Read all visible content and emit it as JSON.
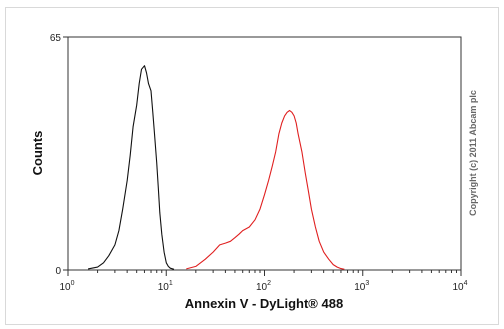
{
  "chart_data": {
    "type": "line",
    "title": "",
    "xlabel": "Annexin V - DyLight® 488",
    "ylabel": "Counts",
    "x_scale": "log",
    "xlim": [
      1,
      10000
    ],
    "ylim": [
      0,
      65
    ],
    "x_tick_labels": [
      {
        "base": "10",
        "exp": "0"
      },
      {
        "base": "10",
        "exp": "1"
      },
      {
        "base": "10",
        "exp": "2"
      },
      {
        "base": "10",
        "exp": "3"
      },
      {
        "base": "10",
        "exp": "4"
      }
    ],
    "y_tick_labels": [
      "0",
      "65"
    ],
    "y_ticks": [
      0,
      65
    ],
    "grid": false,
    "legend": "none",
    "annotation": "Copyright (c) 2011 Abcam plc",
    "series": [
      {
        "color": "#111111",
        "x": [
          1.6,
          2.0,
          2.3,
          2.6,
          3.0,
          3.3,
          3.6,
          4.0,
          4.3,
          4.6,
          5.0,
          5.3,
          5.6,
          6.0,
          6.3,
          6.6,
          7.0,
          7.3,
          7.6,
          8.0,
          8.3,
          8.6,
          9.0,
          9.5,
          10.0,
          10.5,
          11.0,
          12.0
        ],
        "y": [
          0.3,
          0.8,
          2,
          4,
          7,
          11,
          17,
          25,
          32,
          40,
          46,
          52,
          56,
          57,
          55,
          52,
          50,
          44,
          38,
          30,
          23,
          16,
          10,
          5,
          2,
          1,
          0.5,
          0.2
        ]
      },
      {
        "color": "#e02020",
        "x": [
          16,
          20,
          25,
          30,
          35,
          40,
          45,
          50,
          55,
          60,
          70,
          80,
          90,
          100,
          110,
          120,
          130,
          140,
          150,
          160,
          170,
          180,
          190,
          200,
          210,
          220,
          240,
          260,
          280,
          300,
          330,
          360,
          400,
          450,
          500,
          550,
          600,
          650
        ],
        "y": [
          0.3,
          1,
          3,
          5,
          7,
          7.5,
          8,
          9,
          10,
          11,
          12,
          14,
          17,
          21,
          25,
          29,
          33,
          38,
          41,
          43,
          44,
          44.5,
          44,
          43,
          41,
          38,
          33,
          27,
          22,
          17,
          12,
          8,
          5,
          3,
          1.5,
          0.8,
          0.4,
          0.2
        ]
      }
    ]
  }
}
